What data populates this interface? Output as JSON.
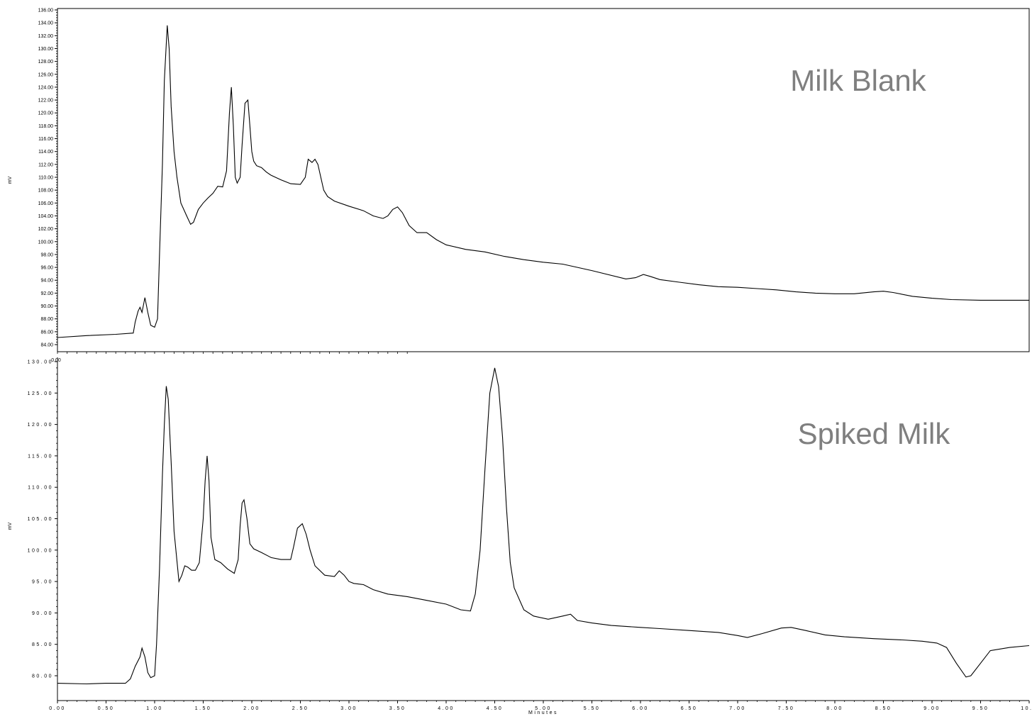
{
  "chart_data": [
    {
      "type": "line",
      "title": "Milk Blank",
      "ylabel": "mV",
      "xlabel": "",
      "xlim": [
        0,
        10
      ],
      "ylim": [
        83,
        136
      ],
      "y_ticks": [
        "84.00",
        "86.00",
        "88.00",
        "90.00",
        "92.00",
        "94.00",
        "96.00",
        "98.00",
        "100.00",
        "102.00",
        "104.00",
        "106.00",
        "108.00",
        "110.00",
        "112.00",
        "114.00",
        "116.00",
        "118.00",
        "120.00",
        "122.00",
        "124.00",
        "126.00",
        "128.00",
        "130.00",
        "132.00",
        "134.00",
        "136.00"
      ],
      "x_tick_labels": [
        "0.00"
      ],
      "grid": false,
      "series": [
        {
          "x": [
            0,
            0.3,
            0.6,
            0.78,
            0.8,
            0.83,
            0.85,
            0.87,
            0.9,
            0.93,
            0.96,
            1.0,
            1.03,
            1.05,
            1.08,
            1.1,
            1.13,
            1.15,
            1.17,
            1.2,
            1.23,
            1.27,
            1.3,
            1.33,
            1.37,
            1.4,
            1.45,
            1.5,
            1.55,
            1.6,
            1.65,
            1.7,
            1.74,
            1.77,
            1.79,
            1.81,
            1.83,
            1.85,
            1.88,
            1.9,
            1.93,
            1.96,
            1.98,
            2.0,
            2.02,
            2.05,
            2.1,
            2.15,
            2.2,
            2.3,
            2.4,
            2.5,
            2.55,
            2.58,
            2.62,
            2.65,
            2.68,
            2.71,
            2.74,
            2.78,
            2.85,
            3.0,
            3.15,
            3.25,
            3.35,
            3.4,
            3.45,
            3.5,
            3.55,
            3.62,
            3.7,
            3.8,
            3.9,
            4.0,
            4.2,
            4.4,
            4.6,
            4.8,
            5.0,
            5.2,
            5.5,
            5.85,
            5.95,
            6.03,
            6.1,
            6.2,
            6.4,
            6.6,
            6.8,
            7.0,
            7.2,
            7.4,
            7.6,
            7.8,
            8.0,
            8.2,
            8.4,
            8.5,
            8.6,
            8.8,
            9.0,
            9.2,
            9.5,
            10.0
          ],
          "y": [
            85.1,
            85.4,
            85.6,
            85.8,
            87.5,
            89.2,
            89.8,
            89.0,
            91.3,
            89.0,
            87.0,
            86.7,
            88.0,
            98.0,
            112.0,
            125.0,
            133.6,
            130.0,
            121.0,
            114.0,
            110.0,
            106.0,
            105.0,
            104.0,
            102.7,
            103.0,
            105.0,
            106.0,
            106.8,
            107.5,
            108.6,
            108.5,
            111.0,
            120.0,
            124.0,
            118.0,
            110.0,
            109.1,
            110.0,
            115.0,
            121.5,
            122.0,
            118.0,
            114.0,
            112.5,
            111.8,
            111.5,
            110.8,
            110.3,
            109.6,
            109.0,
            108.9,
            110.0,
            112.8,
            112.3,
            112.8,
            112.0,
            110.0,
            108.0,
            107.0,
            106.3,
            105.5,
            104.8,
            104.0,
            103.6,
            104.0,
            105.0,
            105.4,
            104.5,
            102.5,
            101.4,
            101.4,
            100.3,
            99.5,
            98.8,
            98.4,
            97.7,
            97.2,
            96.8,
            96.5,
            95.5,
            94.2,
            94.4,
            94.9,
            94.6,
            94.1,
            93.7,
            93.3,
            93.0,
            92.9,
            92.7,
            92.5,
            92.2,
            92.0,
            91.9,
            91.9,
            92.2,
            92.3,
            92.1,
            91.5,
            91.2,
            91.0,
            90.9,
            90.9
          ]
        }
      ]
    },
    {
      "type": "line",
      "title": "Spiked Milk",
      "ylabel": "mV",
      "xlabel": "Minutes",
      "xlim": [
        0,
        10
      ],
      "ylim": [
        77.5,
        131
      ],
      "y_ticks": [
        "80.00",
        "85.00",
        "90.00",
        "95.00",
        "100.00",
        "105.00",
        "110.00",
        "115.00",
        "120.00",
        "125.00",
        "130.00"
      ],
      "x_tick_labels": [
        "0.00",
        "0.50",
        "1.00",
        "1.50",
        "2.00",
        "2.50",
        "3.00",
        "3.50",
        "4.00",
        "4.50",
        "5.00",
        "5.50",
        "6.00",
        "6.50",
        "7.00",
        "7.50",
        "8.00",
        "8.50",
        "9.00",
        "9.50",
        "10.0"
      ],
      "grid": false,
      "series": [
        {
          "x": [
            0,
            0.3,
            0.5,
            0.7,
            0.75,
            0.8,
            0.85,
            0.87,
            0.9,
            0.93,
            0.96,
            1.0,
            1.02,
            1.05,
            1.08,
            1.1,
            1.12,
            1.14,
            1.17,
            1.2,
            1.25,
            1.28,
            1.31,
            1.34,
            1.38,
            1.42,
            1.46,
            1.5,
            1.52,
            1.54,
            1.56,
            1.58,
            1.62,
            1.68,
            1.75,
            1.82,
            1.86,
            1.88,
            1.9,
            1.92,
            1.95,
            1.98,
            2.02,
            2.1,
            2.2,
            2.3,
            2.4,
            2.43,
            2.47,
            2.52,
            2.56,
            2.6,
            2.65,
            2.75,
            2.85,
            2.9,
            2.95,
            3.0,
            3.05,
            3.15,
            3.25,
            3.4,
            3.6,
            3.8,
            4.0,
            4.15,
            4.25,
            4.3,
            4.35,
            4.4,
            4.45,
            4.5,
            4.54,
            4.58,
            4.62,
            4.66,
            4.7,
            4.8,
            4.9,
            5.05,
            5.2,
            5.28,
            5.35,
            5.5,
            5.7,
            6.0,
            6.2,
            6.5,
            6.8,
            7.0,
            7.1,
            7.25,
            7.45,
            7.55,
            7.7,
            7.9,
            8.1,
            8.4,
            8.7,
            8.9,
            9.05,
            9.15,
            9.25,
            9.35,
            9.4,
            9.5,
            9.6,
            9.8,
            10.0
          ],
          "y": [
            78.8,
            78.7,
            78.8,
            78.8,
            79.5,
            81.5,
            83.0,
            84.4,
            83.0,
            80.5,
            79.7,
            80.0,
            85.0,
            97.0,
            112.0,
            120.0,
            126.1,
            124.0,
            114.0,
            103.0,
            95.0,
            96.0,
            97.5,
            97.3,
            96.8,
            96.8,
            98.0,
            105.0,
            111.0,
            115.0,
            111.0,
            102.0,
            98.5,
            98.0,
            97.0,
            96.3,
            98.5,
            104.0,
            107.5,
            108.0,
            105.0,
            101.0,
            100.2,
            99.6,
            98.8,
            98.5,
            98.5,
            100.5,
            103.5,
            104.2,
            102.5,
            100.0,
            97.5,
            96.0,
            95.8,
            96.7,
            96.0,
            95.0,
            94.7,
            94.5,
            93.7,
            93.0,
            92.6,
            92.0,
            91.4,
            90.5,
            90.3,
            93.0,
            100.0,
            113.0,
            125.0,
            129.0,
            126.0,
            118.0,
            107.0,
            98.0,
            94.0,
            90.5,
            89.5,
            89.0,
            89.5,
            89.8,
            88.8,
            88.4,
            88.0,
            87.7,
            87.5,
            87.2,
            86.9,
            86.4,
            86.1,
            86.7,
            87.6,
            87.7,
            87.2,
            86.5,
            86.2,
            85.9,
            85.7,
            85.5,
            85.2,
            84.5,
            82.0,
            79.8,
            80.0,
            82.0,
            84.0,
            84.5,
            84.8
          ]
        }
      ]
    }
  ]
}
